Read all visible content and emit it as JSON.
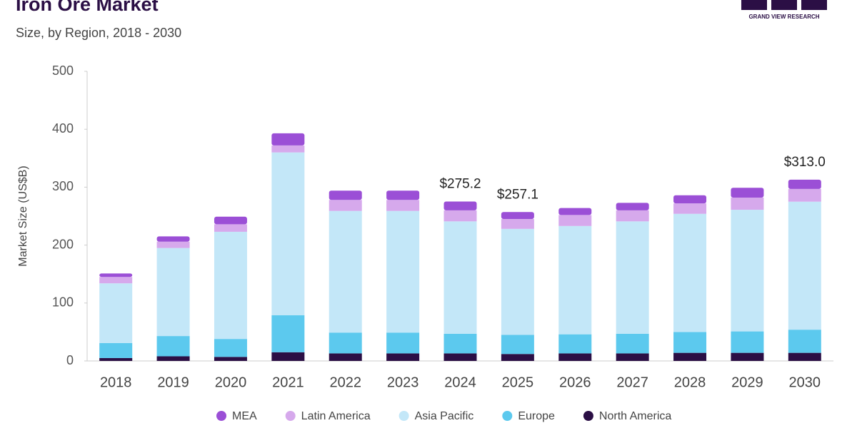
{
  "chart_data": {
    "type": "stacked-bar",
    "title": "Iron Ore Market",
    "subtitle": "Size, by Region, 2018 - 2030",
    "source": "GRAND VIEW RESEARCH",
    "y_label": "Market Size (US$B)",
    "categories": [
      "2018",
      "2019",
      "2020",
      "2021",
      "2022",
      "2023",
      "2024",
      "2025",
      "2026",
      "2027",
      "2028",
      "2029",
      "2030"
    ],
    "series": [
      {
        "name": "MEA",
        "color": "#9b4fd6",
        "values": [
          6,
          9,
          13,
          21,
          16,
          16,
          15.2,
          12.1,
          12,
          13,
          14,
          17,
          16
        ]
      },
      {
        "name": "Latin America",
        "color": "#d6a9ec",
        "values": [
          11,
          11,
          13,
          12,
          19,
          19,
          19,
          17,
          19,
          19,
          18,
          21,
          22
        ]
      },
      {
        "name": "Asia Pacific",
        "color": "#c3e7f8",
        "values": [
          103,
          152,
          185,
          281,
          210,
          210,
          194,
          183,
          187,
          194,
          204,
          210,
          221
        ]
      },
      {
        "name": "Europe",
        "color": "#5cc9ee",
        "values": [
          26,
          35,
          31,
          64,
          36,
          36,
          34,
          33,
          33,
          34,
          36,
          37,
          40
        ]
      },
      {
        "name": "North America",
        "color": "#2b0f45",
        "values": [
          5,
          8,
          7,
          15,
          13,
          13,
          13,
          12,
          13,
          13,
          14,
          14,
          14
        ]
      }
    ],
    "total_labels": [
      null,
      null,
      null,
      null,
      null,
      null,
      "$275.2",
      "$257.1",
      null,
      null,
      null,
      null,
      "$313.0"
    ],
    "ylim": [
      0,
      500
    ],
    "yticks": [
      0,
      100,
      200,
      300,
      400,
      500
    ],
    "grid": false
  }
}
